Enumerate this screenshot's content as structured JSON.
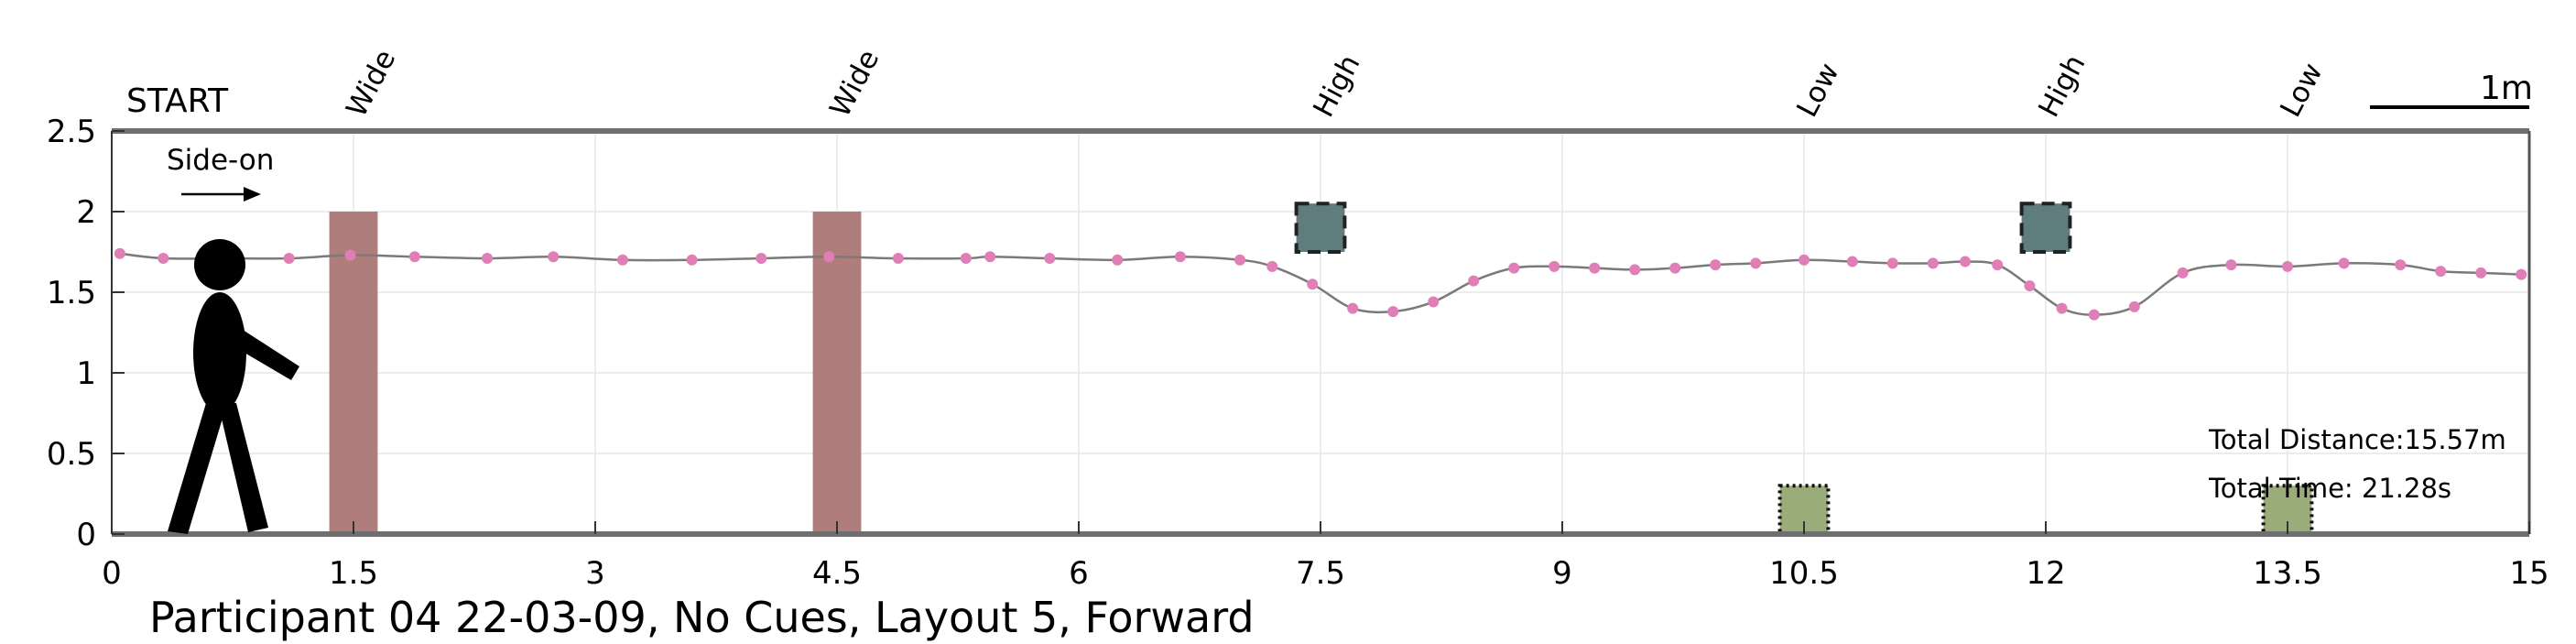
{
  "labels": {
    "start": "START",
    "direction": "Side-on",
    "scale_bar": "1m",
    "total_distance": "Total Distance:15.57m",
    "total_time": "Total Time: 21.28s",
    "caption": "Participant 04 22-03-09, No Cues, Layout 5, Forward"
  },
  "colors": {
    "wide_obstacle": "#b07d7d",
    "high_obstacle": "#5f7d7e",
    "low_obstacle": "#9aac7a",
    "trajectory_line": "#7a7a7a",
    "trajectory_marker": "#e07fb6",
    "axis": "#6f6f6f",
    "grid": "#e6e6e6"
  },
  "chart_data": {
    "type": "line",
    "xlim": [
      0,
      15
    ],
    "ylim": [
      0,
      2.5
    ],
    "x_ticks": [
      "0",
      "1.5",
      "3",
      "4.5",
      "6",
      "7.5",
      "9",
      "10.5",
      "12",
      "13.5",
      "15"
    ],
    "x_tick_values": [
      0,
      1.5,
      3,
      4.5,
      6,
      7.5,
      9,
      10.5,
      12,
      13.5,
      15
    ],
    "y_ticks": [
      "0",
      "0.5",
      "1",
      "1.5",
      "2",
      "2.5"
    ],
    "y_tick_values": [
      0,
      0.5,
      1,
      1.5,
      2,
      2.5
    ],
    "grid": true,
    "obstacles": [
      {
        "label": "Wide",
        "type": "wide",
        "x_start": 1.35,
        "x_end": 1.65,
        "y_bottom": 0,
        "y_top": 2.0
      },
      {
        "label": "Wide",
        "type": "wide",
        "x_start": 4.35,
        "x_end": 4.65,
        "y_bottom": 0,
        "y_top": 2.0
      },
      {
        "label": "High",
        "type": "high",
        "x_start": 7.35,
        "x_end": 7.65,
        "y_bottom": 1.75,
        "y_top": 2.05
      },
      {
        "label": "Low",
        "type": "low",
        "x_start": 10.35,
        "x_end": 10.65,
        "y_bottom": 0,
        "y_top": 0.3
      },
      {
        "label": "High",
        "type": "high",
        "x_start": 11.85,
        "x_end": 12.15,
        "y_bottom": 1.75,
        "y_top": 2.05
      },
      {
        "label": "Low",
        "type": "low",
        "x_start": 13.35,
        "x_end": 13.65,
        "y_bottom": 0,
        "y_top": 0.3
      }
    ],
    "series": [
      {
        "x": [
          0.05,
          0.32,
          0.7,
          1.1,
          1.48,
          1.88,
          2.33,
          2.74,
          3.17,
          3.6,
          4.03,
          4.45,
          4.88,
          5.3,
          5.45,
          5.82,
          6.24,
          6.63,
          7.0,
          7.2,
          7.45,
          7.7,
          7.95,
          8.2,
          8.45,
          8.7,
          8.95,
          9.2,
          9.45,
          9.7,
          9.95,
          10.2,
          10.5,
          10.8,
          11.05,
          11.3,
          11.5,
          11.7,
          11.9,
          12.1,
          12.3,
          12.55,
          12.85,
          13.15,
          13.5,
          13.85,
          14.2,
          14.45,
          14.7,
          14.95
        ],
        "y": [
          1.74,
          1.71,
          1.71,
          1.71,
          1.73,
          1.72,
          1.71,
          1.72,
          1.7,
          1.7,
          1.71,
          1.72,
          1.71,
          1.71,
          1.72,
          1.71,
          1.7,
          1.72,
          1.7,
          1.66,
          1.55,
          1.4,
          1.38,
          1.44,
          1.57,
          1.65,
          1.66,
          1.65,
          1.64,
          1.65,
          1.67,
          1.68,
          1.7,
          1.69,
          1.68,
          1.68,
          1.69,
          1.67,
          1.54,
          1.4,
          1.36,
          1.41,
          1.62,
          1.67,
          1.66,
          1.68,
          1.67,
          1.63,
          1.62,
          1.61
        ]
      }
    ]
  }
}
